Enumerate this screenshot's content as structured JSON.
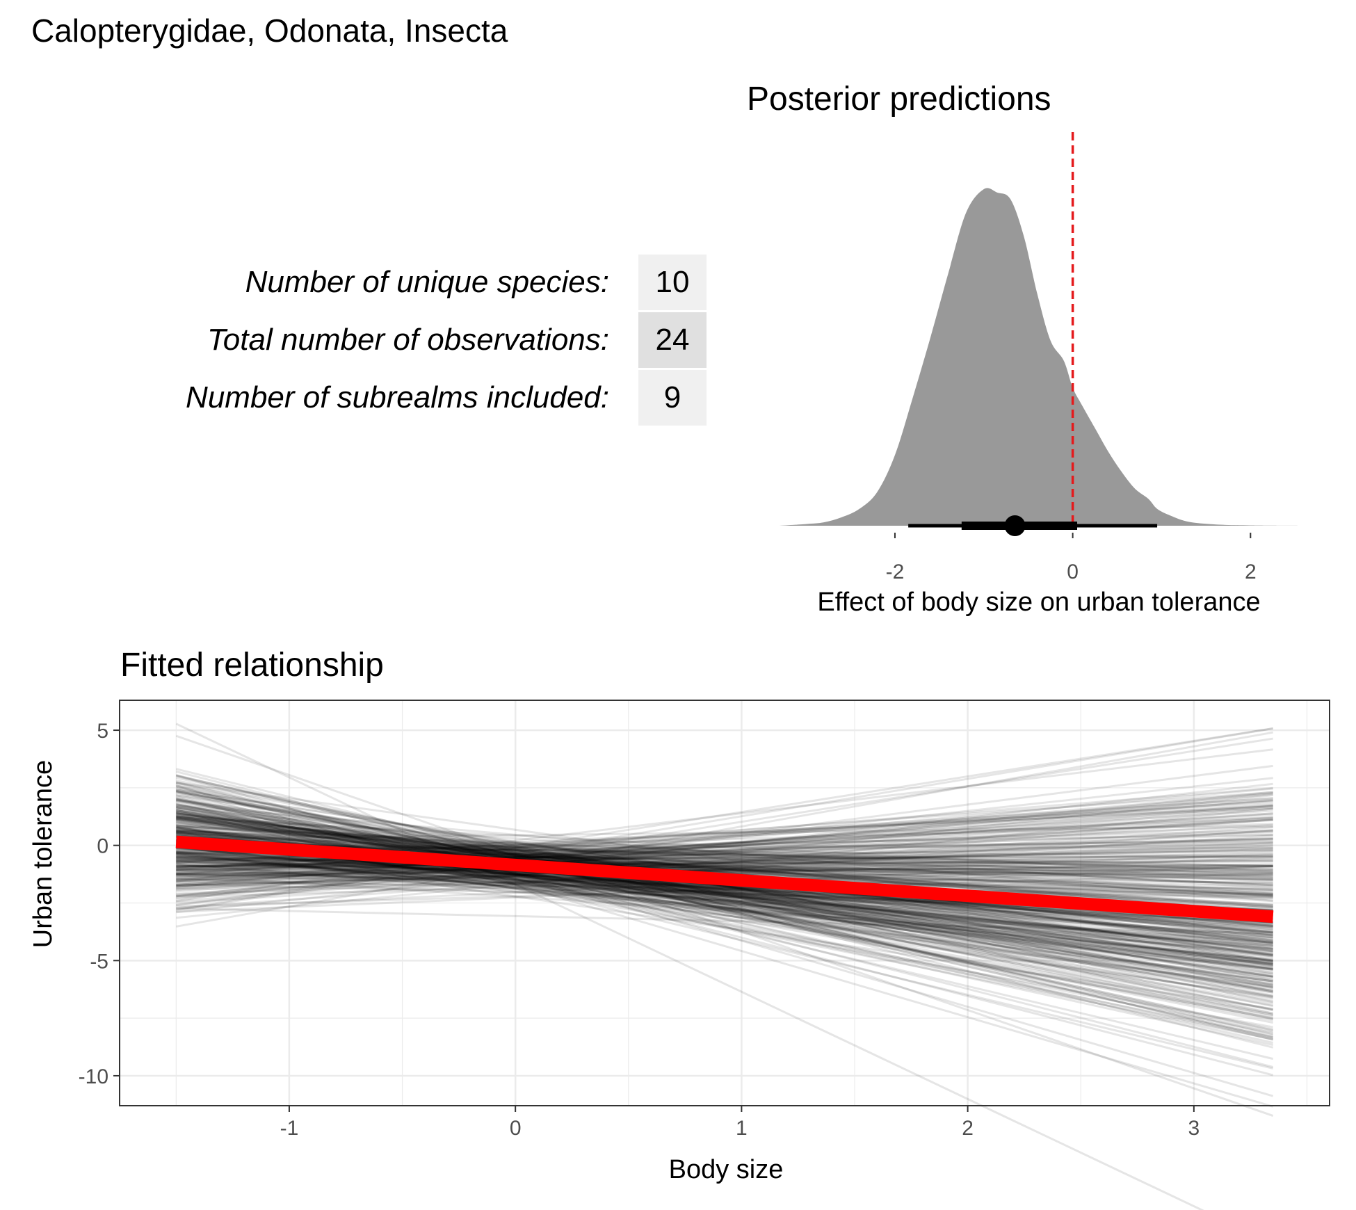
{
  "page_title": "Calopterygidae, Odonata, Insecta",
  "colors": {
    "density_fill": "#999999",
    "zero_line": "#e41a1c",
    "fit_line": "#ff0000",
    "draw_lines": "#000000",
    "stat_cell_light": "#f0f0f0",
    "stat_cell_dark": "#e0e0e0",
    "grid": "#ebebeb",
    "panel_border": "#333333"
  },
  "stats": [
    {
      "label": "Number of unique species:",
      "value": "10"
    },
    {
      "label": "Total number of observations:",
      "value": "24"
    },
    {
      "label": "Number of subrealms included:",
      "value": "9"
    }
  ],
  "chart_data": [
    {
      "type": "area",
      "title": "Posterior predictions",
      "xlabel": "Effect of body size on urban tolerance",
      "ylabel": "",
      "xlim": [
        -3.4,
        2.6
      ],
      "x_ticks": [
        -2,
        0,
        2
      ],
      "x_tick_labels": [
        "-2",
        "0",
        "2"
      ],
      "grid": false,
      "reference_line": {
        "x": 0,
        "style": "dashed",
        "color": "red"
      },
      "density": {
        "x": [
          -3.3,
          -3.0,
          -2.8,
          -2.6,
          -2.4,
          -2.2,
          -2.0,
          -1.8,
          -1.6,
          -1.4,
          -1.2,
          -1.0,
          -0.85,
          -0.7,
          -0.55,
          -0.4,
          -0.25,
          -0.1,
          0.0,
          0.1,
          0.25,
          0.4,
          0.55,
          0.7,
          0.85,
          0.95,
          1.1,
          1.3,
          1.6,
          2.0,
          2.6
        ],
        "y": [
          0.0,
          0.005,
          0.01,
          0.025,
          0.05,
          0.1,
          0.21,
          0.38,
          0.56,
          0.75,
          0.93,
          1.0,
          0.99,
          0.97,
          0.86,
          0.69,
          0.55,
          0.49,
          0.41,
          0.36,
          0.29,
          0.22,
          0.16,
          0.11,
          0.08,
          0.05,
          0.03,
          0.012,
          0.004,
          0.001,
          0.0
        ]
      },
      "point_interval": {
        "median": -0.65,
        "inner_interval": [
          -1.25,
          0.05
        ],
        "outer_interval": [
          -1.85,
          0.95
        ]
      }
    },
    {
      "type": "line",
      "title": "Fitted relationship",
      "xlabel": "Body size",
      "ylabel": "Urban tolerance",
      "xlim": [
        -1.75,
        3.6
      ],
      "ylim": [
        -11.3,
        6.3
      ],
      "x_ticks": [
        -1,
        0,
        1,
        2,
        3
      ],
      "x_tick_labels": [
        "-1",
        "0",
        "1",
        "2",
        "3"
      ],
      "y_ticks": [
        5,
        0,
        -5,
        -10
      ],
      "y_tick_labels": [
        "5",
        "0",
        "-5",
        "-10"
      ],
      "grid": true,
      "x_range_of_lines": [
        -1.5,
        3.35
      ],
      "mean_fit": {
        "intercept": -0.85,
        "slope": -0.67,
        "color": "red"
      },
      "posterior_draws": {
        "count": 400,
        "intercept_mean": -0.85,
        "intercept_sd": 0.55,
        "slope_mean": -0.67,
        "slope_sd": 0.95,
        "opacity": 0.1
      }
    }
  ]
}
